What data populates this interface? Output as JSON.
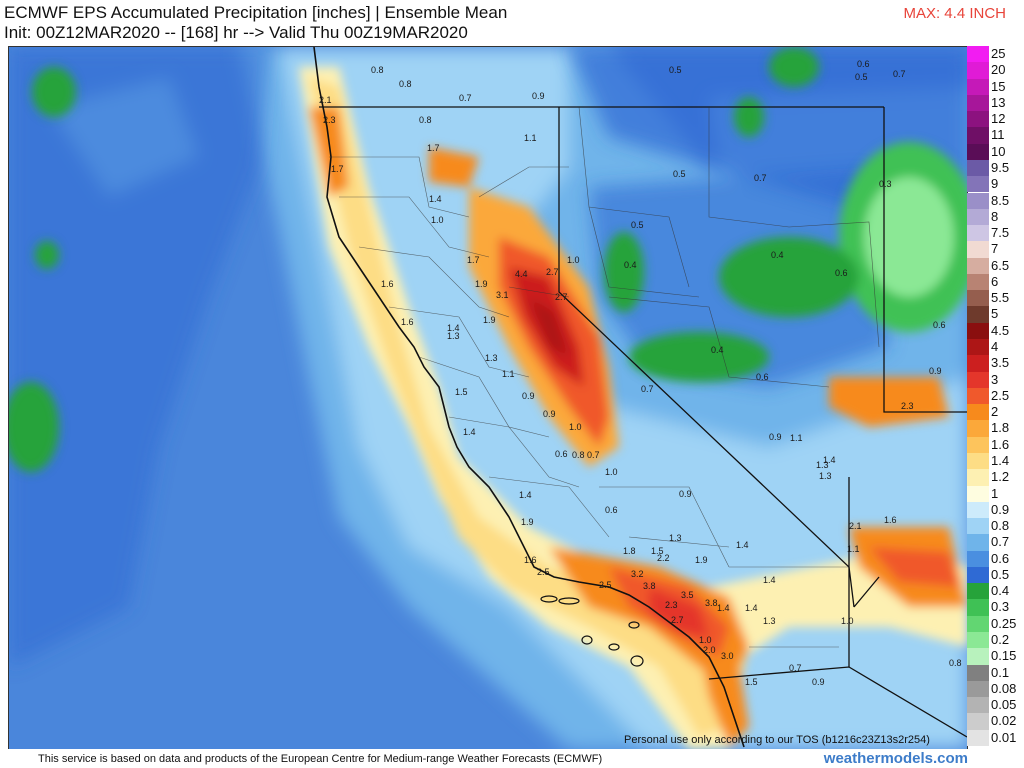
{
  "header": {
    "title_line1": "ECMWF EPS Accumulated Precipitation [inches] | Ensemble Mean",
    "title_line2": "Init: 00Z12MAR2020 -- [168] hr --> Valid Thu 00Z19MAR2020",
    "max_label": "MAX: 4.4 INCH"
  },
  "legend": {
    "entries": [
      {
        "label": "25",
        "color": "#f21cf2"
      },
      {
        "label": "20",
        "color": "#e01bd6"
      },
      {
        "label": "15",
        "color": "#c519b8"
      },
      {
        "label": "13",
        "color": "#a7169a"
      },
      {
        "label": "12",
        "color": "#8c127f"
      },
      {
        "label": "11",
        "color": "#6f0f66"
      },
      {
        "label": "10",
        "color": "#5a0d57"
      },
      {
        "label": "9.5",
        "color": "#6b5aa6"
      },
      {
        "label": "9",
        "color": "#8374b8"
      },
      {
        "label": "8.5",
        "color": "#9a8fc8"
      },
      {
        "label": "8",
        "color": "#b3aad6"
      },
      {
        "label": "7.5",
        "color": "#cec6e4"
      },
      {
        "label": "7",
        "color": "#f1dad2"
      },
      {
        "label": "6.5",
        "color": "#d6ada0"
      },
      {
        "label": "6",
        "color": "#b88373"
      },
      {
        "label": "5.5",
        "color": "#955e4e"
      },
      {
        "label": "5",
        "color": "#6e3a2c"
      },
      {
        "label": "4.5",
        "color": "#8a0f0f"
      },
      {
        "label": "4",
        "color": "#ad1616"
      },
      {
        "label": "3.5",
        "color": "#cc1f1f"
      },
      {
        "label": "3",
        "color": "#e4362b"
      },
      {
        "label": "2.5",
        "color": "#f0592c"
      },
      {
        "label": "2",
        "color": "#f78a1c"
      },
      {
        "label": "1.8",
        "color": "#fba83a"
      },
      {
        "label": "1.6",
        "color": "#fdc45c"
      },
      {
        "label": "1.4",
        "color": "#fddd85"
      },
      {
        "label": "1.2",
        "color": "#fdf0b2"
      },
      {
        "label": "1",
        "color": "#fefde0"
      },
      {
        "label": "0.9",
        "color": "#cdebfb"
      },
      {
        "label": "0.8",
        "color": "#9fd3f5"
      },
      {
        "label": "0.7",
        "color": "#6fb4ea"
      },
      {
        "label": "0.6",
        "color": "#4a8fe0"
      },
      {
        "label": "0.5",
        "color": "#2f6ad4"
      },
      {
        "label": "0.4",
        "color": "#26a33a"
      },
      {
        "label": "0.3",
        "color": "#3fc155"
      },
      {
        "label": "0.25",
        "color": "#62d672"
      },
      {
        "label": "0.2",
        "color": "#8be895"
      },
      {
        "label": "0.15",
        "color": "#b8f2bd"
      },
      {
        "label": "0.1",
        "color": "#808080"
      },
      {
        "label": "0.08",
        "color": "#9a9a9a"
      },
      {
        "label": "0.05",
        "color": "#b3b3b3"
      },
      {
        "label": "0.02",
        "color": "#cccccc"
      },
      {
        "label": "0.01",
        "color": "#e3e3e3"
      }
    ]
  },
  "map_labels": [
    "0.8",
    "0.8",
    "0.7",
    "0.9",
    "0.5",
    "0.6",
    "0.5",
    "0.7",
    "0.8",
    "1.1",
    "0.5",
    "0.7",
    "0.3",
    "1.7",
    "2.1",
    "2.3",
    "1.7",
    "1.4",
    "1.0",
    "0.5",
    "0.4",
    "0.4",
    "1.7",
    "4.4",
    "2.7",
    "1.0",
    "0.6",
    "1.6",
    "1.9",
    "3.1",
    "2.7",
    "1.6",
    "1.4",
    "1.9",
    "1.3",
    "1.3",
    "1.1",
    "0.4",
    "0.6",
    "0.6",
    "0.9",
    "0.7",
    "1.5",
    "0.9",
    "1.0",
    "0.9",
    "2.3",
    "1.4",
    "0.6",
    "0.8",
    "0.7",
    "1.0",
    "1.4",
    "0.9",
    "1.1",
    "1.3",
    "1.3",
    "1.4",
    "1.4",
    "0.6",
    "0.9",
    "2.1",
    "1.6",
    "1.9",
    "1.3",
    "1.8",
    "1.5",
    "1.9",
    "1.4",
    "2.2",
    "1.6",
    "2.5",
    "3.2",
    "3.8",
    "1.4",
    "1.1",
    "2.5",
    "3.5",
    "3.8",
    "1.4",
    "2.3",
    "2.7",
    "1.3",
    "1.0",
    "1.0",
    "3.0",
    "2.0",
    "0.7",
    "0.9",
    "1.5",
    "0.8"
  ],
  "colors": {
    "ocean": "#4a86db",
    "max_label": "#e8443a",
    "brand": "#3d7cc9"
  },
  "tos_notice": "Personal use only according to our TOS (b1216c23Z13s2r254)",
  "footer": {
    "source_note": "This service is based on data and products of the European Centre for Medium-range Weather Forecasts (ECMWF)",
    "brand": "weathermodels.com"
  }
}
